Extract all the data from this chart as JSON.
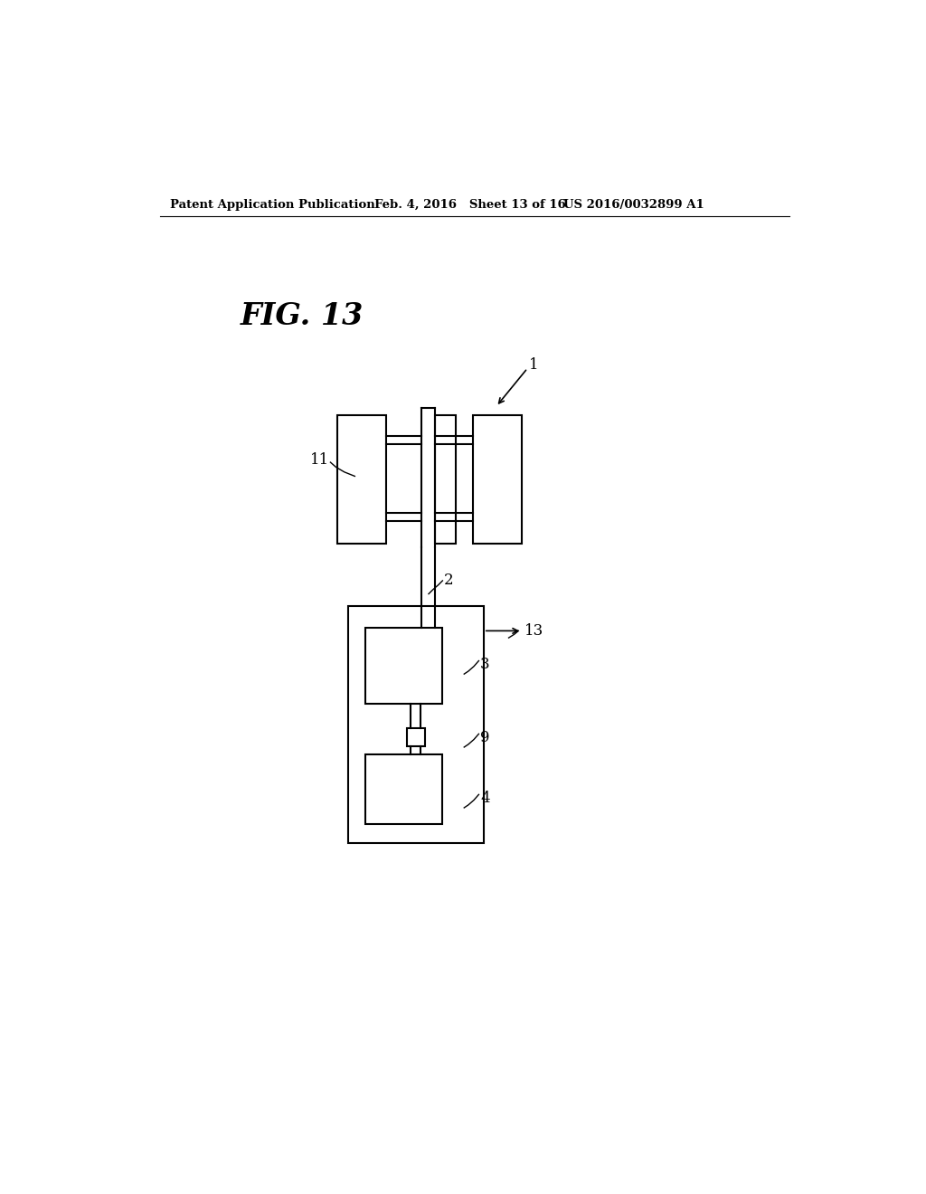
{
  "background_color": "#ffffff",
  "header_left": "Patent Application Publication",
  "header_mid": "Feb. 4, 2016   Sheet 13 of 16",
  "header_right": "US 2016/0032899 A1",
  "fig_label": "FIG. 13",
  "label_1": "1",
  "label_2": "2",
  "label_3": "3",
  "label_4": "4",
  "label_9": "9",
  "label_11": "11",
  "label_13": "13",
  "line_color": "#000000",
  "line_width": 1.5
}
